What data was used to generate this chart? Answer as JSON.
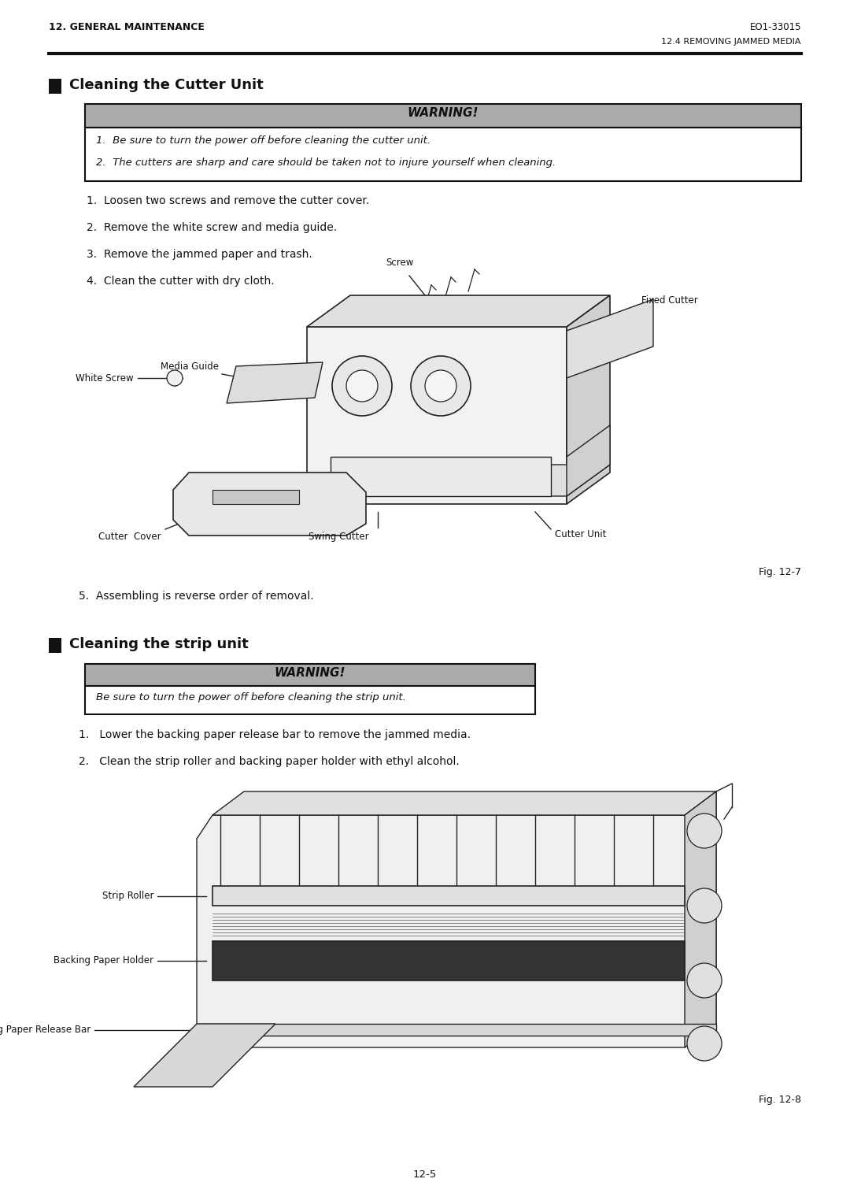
{
  "page_width": 10.8,
  "page_height": 15.25,
  "dpi": 100,
  "bg_color": "#ffffff",
  "header_left": "12. GENERAL MAINTENANCE",
  "header_right": "EO1-33015",
  "subheader_right": "12.4 REMOVING JAMMED MEDIA",
  "section1_title": "Cleaning the Cutter Unit",
  "section2_title": "Cleaning the strip unit",
  "warning_header": "WARNING!",
  "warning_bg": "#aaaaaa",
  "warning_border": "#111111",
  "warning1_lines": [
    "1.  Be sure to turn the power off before cleaning the cutter unit.",
    "2.  The cutters are sharp and care should be taken not to injure yourself when cleaning."
  ],
  "warning2_line": "Be sure to turn the power off before cleaning the strip unit.",
  "cutter_steps": [
    "1.  Loosen two screws and remove the cutter cover.",
    "2.  Remove the white screw and media guide.",
    "3.  Remove the jammed paper and trash.",
    "4.  Clean the cutter with dry cloth."
  ],
  "step5": "5.  Assembling is reverse order of removal.",
  "strip_steps": [
    "1.   Lower the backing paper release bar to remove the jammed media.",
    "2.   Clean the strip roller and backing paper holder with ethyl alcohol."
  ],
  "fig1_label": "Fig. 12-7",
  "fig2_label": "Fig. 12-8",
  "page_num": "12-5"
}
